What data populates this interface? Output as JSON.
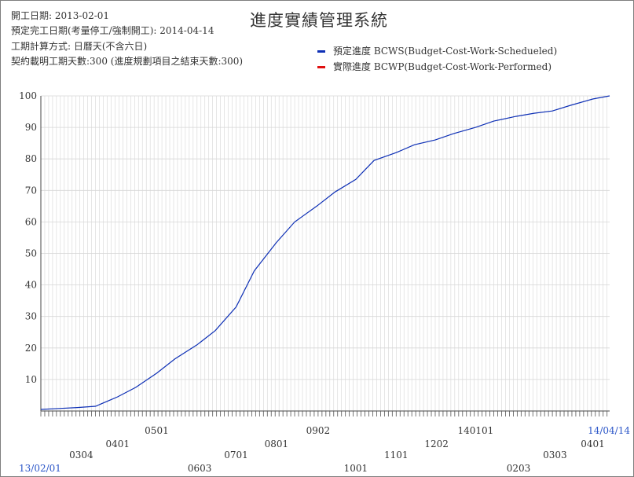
{
  "title": "進度實績管理系統",
  "info": [
    "開工日期: 2013-02-01",
    "預定完工日期(考量停工/強制開工): 2014-04-14",
    "工期計算方式: 日曆天(不含六日)",
    "契約載明工期天數:300 (進度規劃項目之結束天數:300)"
  ],
  "legend": [
    {
      "label": "預定進度 BCWS(Budget-Cost-Work-Schedueled)",
      "color": "#0d2fb5"
    },
    {
      "label": "實際進度 BCWP(Budget-Cost-Work-Performed)",
      "color": "#e01010"
    }
  ],
  "chart_data": {
    "type": "line",
    "title": "進度實績管理系統",
    "ylim": [
      0,
      100
    ],
    "yticks": [
      10,
      20,
      30,
      40,
      50,
      60,
      70,
      80,
      90,
      100
    ],
    "grid": true,
    "xlim": [
      "2013-02-01",
      "2014-04-14"
    ],
    "x_tick_labels_row1": [
      {
        "date": "2013-05-01",
        "label": "0501"
      },
      {
        "date": "2013-09-02",
        "label": "0902"
      },
      {
        "date": "2014-01-01",
        "label": "140101"
      },
      {
        "date": "2014-04-14",
        "label": "14/04/14"
      }
    ],
    "x_tick_labels_row2": [
      {
        "date": "2013-04-01",
        "label": "0401"
      },
      {
        "date": "2013-08-01",
        "label": "0801"
      },
      {
        "date": "2013-12-02",
        "label": "1202"
      },
      {
        "date": "2014-04-01",
        "label": "0401"
      }
    ],
    "x_tick_labels_row3": [
      {
        "date": "2013-03-04",
        "label": "0304"
      },
      {
        "date": "2013-07-01",
        "label": "0701"
      },
      {
        "date": "2013-11-01",
        "label": "1101"
      },
      {
        "date": "2014-03-03",
        "label": "0303"
      }
    ],
    "x_tick_labels_row4": [
      {
        "date": "2013-02-01",
        "label": "13/02/01"
      },
      {
        "date": "2013-06-03",
        "label": "0603"
      },
      {
        "date": "2013-10-01",
        "label": "1001"
      },
      {
        "date": "2014-02-03",
        "label": "0203"
      }
    ],
    "series": [
      {
        "name": "預定進度 BCWS(Budget-Cost-Work-Schedueled)",
        "color": "#0d2fb5",
        "x": [
          "2013-02-01",
          "2013-02-15",
          "2013-03-01",
          "2013-03-15",
          "2013-04-01",
          "2013-04-15",
          "2013-05-01",
          "2013-05-15",
          "2013-06-01",
          "2013-06-15",
          "2013-07-01",
          "2013-07-15",
          "2013-08-01",
          "2013-08-15",
          "2013-09-01",
          "2013-09-15",
          "2013-10-01",
          "2013-10-15",
          "2013-11-01",
          "2013-11-15",
          "2013-12-01",
          "2013-12-15",
          "2014-01-01",
          "2014-01-15",
          "2014-02-01",
          "2014-02-15",
          "2014-03-01",
          "2014-03-15",
          "2014-04-01",
          "2014-04-14"
        ],
        "values": [
          0.5,
          0.8,
          1.1,
          1.5,
          4.5,
          7.5,
          12.0,
          16.5,
          21.0,
          25.5,
          33.0,
          44.5,
          53.5,
          60.0,
          65.0,
          69.5,
          73.5,
          79.5,
          82.0,
          84.5,
          86.0,
          88.0,
          90.0,
          92.0,
          93.5,
          94.5,
          95.2,
          97.0,
          99.0,
          100.0
        ]
      },
      {
        "name": "實際進度 BCWP(Budget-Cost-Work-Performed)",
        "color": "#e01010",
        "x": [],
        "values": []
      }
    ]
  }
}
